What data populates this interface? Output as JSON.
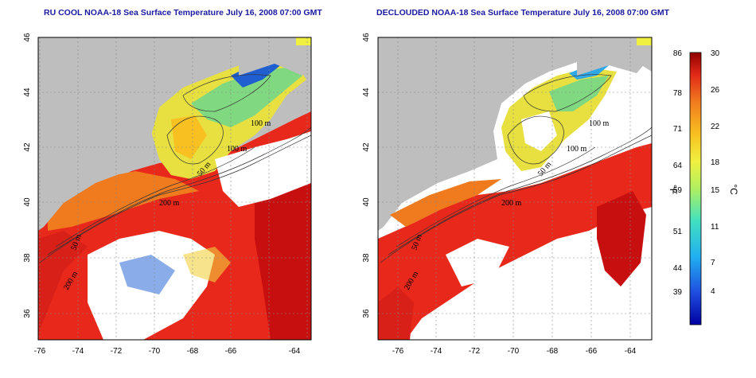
{
  "panels": [
    {
      "title": "RU COOL NOAA-18 Sea Surface Temperature July 16, 2008 07:00 GMT",
      "x_ticks": [
        "-76",
        "-74",
        "-72",
        "-70",
        "-68",
        "-66",
        "-64"
      ],
      "y_ticks": [
        "36",
        "38",
        "40",
        "42",
        "44",
        "46"
      ],
      "contour_labels": [
        "100 m",
        "100 m",
        "50 m",
        "200 m",
        "50 m",
        "200 m"
      ]
    },
    {
      "title": "DECLOUDED NOAA-18 Sea Surface Temperature July 16, 2008 07:00 GMT",
      "x_ticks": [
        "-76",
        "-74",
        "-72",
        "-70",
        "-68",
        "-66",
        "-64"
      ],
      "y_ticks": [
        "36",
        "38",
        "40",
        "42",
        "44",
        "46"
      ],
      "contour_labels": [
        "100 m",
        "100 m",
        "50 m",
        "200 m",
        "50 m",
        "200 m"
      ]
    }
  ],
  "colorbar": {
    "fahrenheit_ticks": [
      "86",
      "78",
      "71",
      "64",
      "59",
      "51",
      "44",
      "39"
    ],
    "celsius_ticks": [
      "30",
      "26",
      "22",
      "18",
      "15",
      "11",
      "7",
      "4"
    ],
    "fahrenheit_unit": "°F",
    "celsius_unit": "°C"
  },
  "colors": {
    "land": "#bebebe",
    "cloud": "#ffffff",
    "warm": "#e8281a",
    "hot": "#c80f0f",
    "mid": "#f07a1e",
    "cool_yellow": "#e8e040",
    "cool_green": "#80d880",
    "cold_blue": "#1f5fd0",
    "title": "#1a1aa0"
  }
}
